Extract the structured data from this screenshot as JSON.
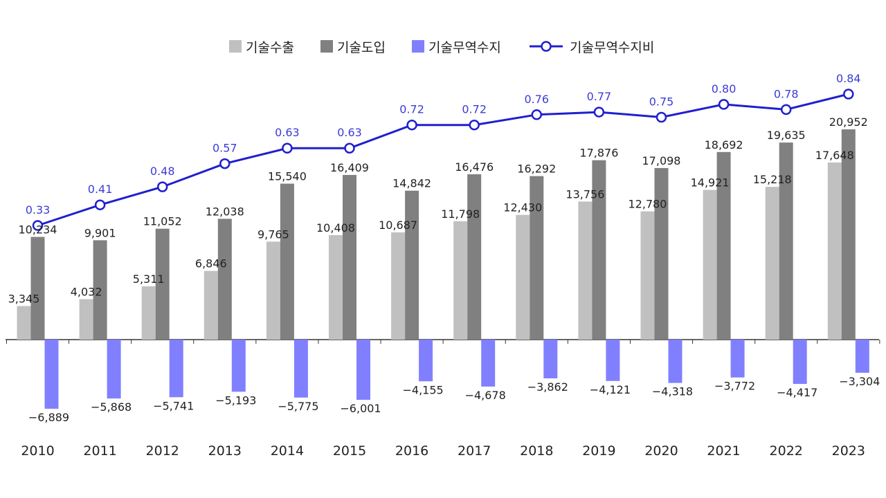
{
  "chart_data": {
    "type": "bar",
    "categories": [
      "2010",
      "2011",
      "2012",
      "2013",
      "2014",
      "2015",
      "2016",
      "2017",
      "2018",
      "2019",
      "2020",
      "2021",
      "2022",
      "2023"
    ],
    "series": [
      {
        "name": "기술수출",
        "kind": "bar",
        "color": "#c0c0c0",
        "values": [
          3345,
          4032,
          5311,
          6846,
          9765,
          10408,
          10687,
          11798,
          12430,
          13756,
          12780,
          14921,
          15218,
          17648
        ],
        "labels": [
          "3,345",
          "4,032",
          "5,311",
          "6,846",
          "9,765",
          "10,408",
          "10,687",
          "11,798",
          "12,430",
          "13,756",
          "12,780",
          "14,921",
          "15,218",
          "17,648"
        ]
      },
      {
        "name": "기술도입",
        "kind": "bar",
        "color": "#808080",
        "values": [
          10234,
          9901,
          11052,
          12038,
          15540,
          16409,
          14842,
          16476,
          16292,
          17876,
          17098,
          18692,
          19635,
          20952
        ],
        "labels": [
          "10,234",
          "9,901",
          "11,052",
          "12,038",
          "15,540",
          "16,409",
          "14,842",
          "16,476",
          "16,292",
          "17,876",
          "17,098",
          "18,692",
          "19,635",
          "20,952"
        ]
      },
      {
        "name": "기술무역수지",
        "kind": "bar",
        "color": "#8080ff",
        "values": [
          -6889,
          -5868,
          -5741,
          -5193,
          -5775,
          -6001,
          -4155,
          -4678,
          -3862,
          -4121,
          -4318,
          -3772,
          -4417,
          -3304
        ],
        "labels": [
          "−6,889",
          "−5,868",
          "−5,741",
          "−5,193",
          "−5,775",
          "−6,001",
          "−4,155",
          "−4,678",
          "−3,862",
          "−4,121",
          "−4,318",
          "−3,772",
          "−4,417",
          "−3,304"
        ]
      },
      {
        "name": "기술무역수지비",
        "kind": "line",
        "color": "#1f1fcf",
        "values": [
          0.33,
          0.41,
          0.48,
          0.57,
          0.63,
          0.63,
          0.72,
          0.72,
          0.76,
          0.77,
          0.75,
          0.8,
          0.78,
          0.84
        ],
        "labels": [
          "0.33",
          "0.41",
          "0.48",
          "0.57",
          "0.63",
          "0.63",
          "0.72",
          "0.72",
          "0.76",
          "0.77",
          "0.75",
          "0.80",
          "0.78",
          "0.84"
        ]
      }
    ],
    "legend": "top-center",
    "grid": false,
    "title": "",
    "xlabel": "",
    "ylabel": ""
  }
}
